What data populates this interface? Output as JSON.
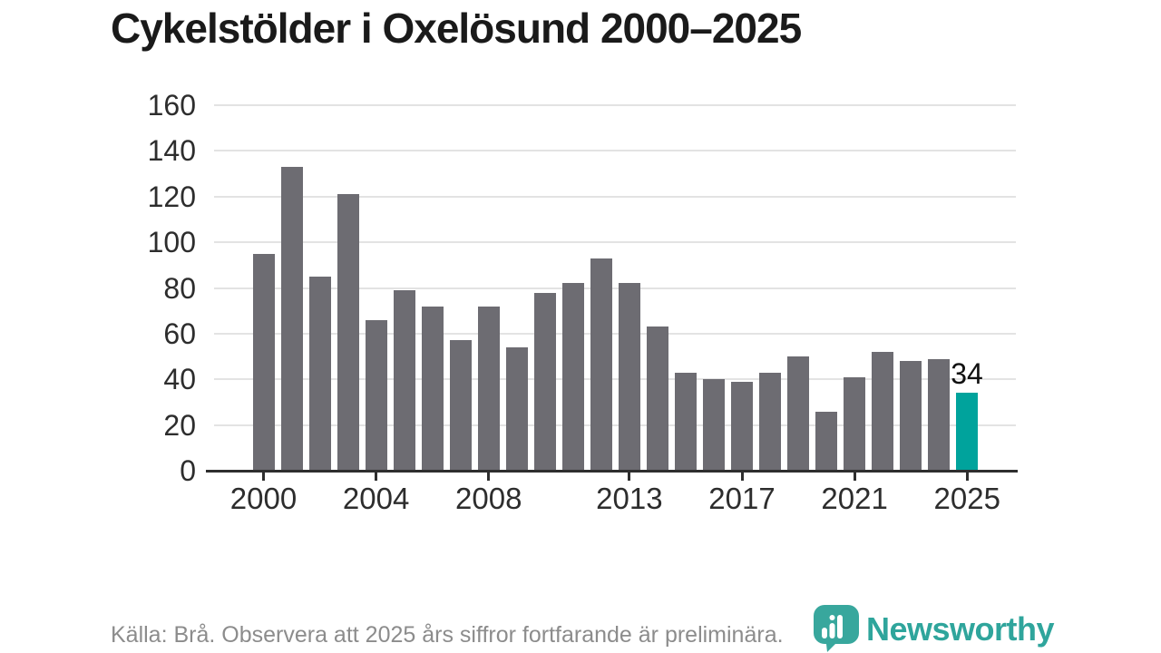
{
  "title": "Cykelstölder i Oxelösund 2000–2025",
  "chart_data": {
    "type": "bar",
    "x": [
      2000,
      2001,
      2002,
      2003,
      2004,
      2005,
      2006,
      2007,
      2008,
      2009,
      2010,
      2011,
      2012,
      2013,
      2014,
      2015,
      2016,
      2017,
      2018,
      2019,
      2020,
      2021,
      2022,
      2023,
      2024,
      2025
    ],
    "values": [
      95,
      133,
      85,
      121,
      66,
      79,
      72,
      57,
      72,
      54,
      78,
      82,
      93,
      82,
      63,
      43,
      40,
      39,
      43,
      50,
      26,
      41,
      52,
      48,
      49,
      34
    ],
    "title": "Cykelstölder i Oxelösund 2000–2025",
    "xlabel": "",
    "ylabel": "",
    "ylim": [
      0,
      160
    ],
    "y_ticks": [
      0,
      20,
      40,
      60,
      80,
      100,
      120,
      140,
      160
    ],
    "x_tick_labels": [
      "2000",
      "2004",
      "2008",
      "2013",
      "2017",
      "2021",
      "2025"
    ],
    "x_tick_years": [
      2000,
      2004,
      2008,
      2013,
      2017,
      2021,
      2025
    ],
    "grid": "horizontal",
    "legend": "none",
    "highlight_index": 25,
    "highlight_label": "34",
    "bar_color": "#6d6c72",
    "highlight_color": "#00a39c"
  },
  "footer": {
    "source_text": "Källa: Brå. Observera att 2025 års siffror fortfarande är preliminära."
  },
  "logo": {
    "text": "Newsworthy",
    "color": "#2fa59c",
    "icon": "newsworthy-chart-pin"
  }
}
